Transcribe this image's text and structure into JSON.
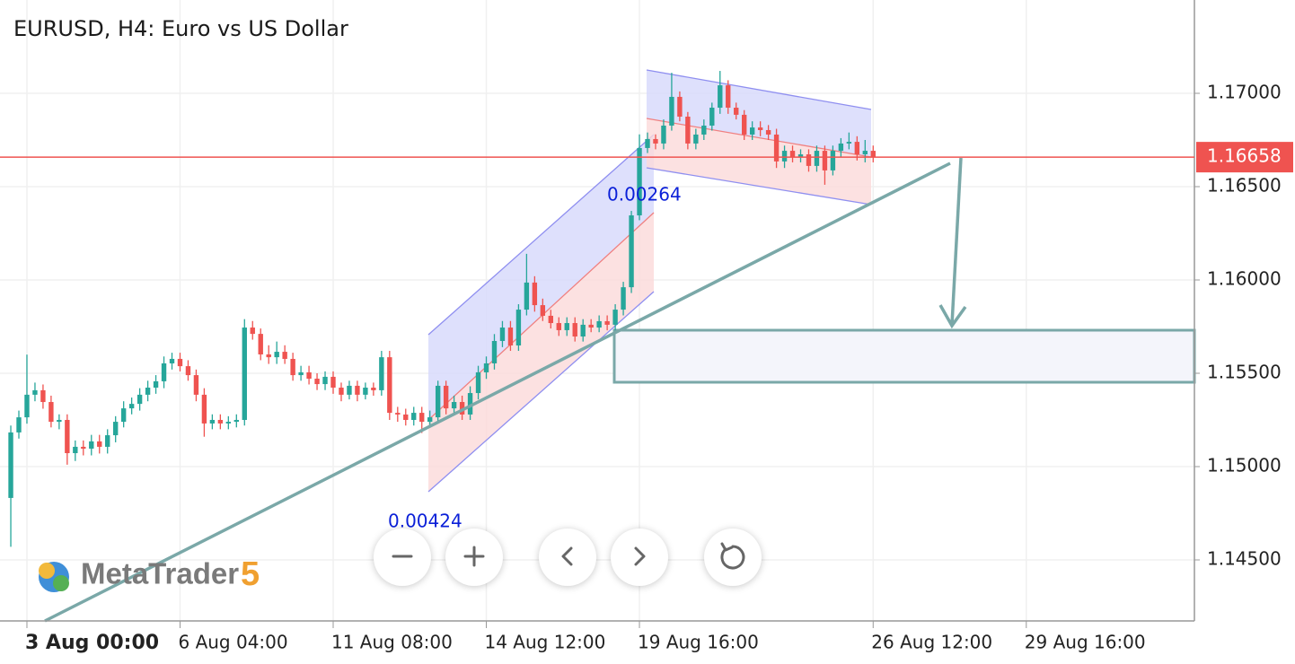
{
  "chart_data": {
    "type": "candlestick",
    "title": "EURUSD, H4: Euro vs US Dollar",
    "up_color": "#26a69a",
    "down_color": "#ef5350",
    "open": [
      1.14832,
      1.15183,
      1.15264,
      1.15385,
      1.15409,
      1.15346,
      1.1524,
      1.1525,
      1.15072,
      1.15106,
      1.15096,
      1.15135,
      1.15106,
      1.15168,
      1.1524,
      1.15312,
      1.15336,
      1.15385,
      1.15423,
      1.15457,
      1.15553,
      1.15577,
      1.15538,
      1.1549,
      1.15385,
      1.15231,
      1.1525,
      1.15231,
      1.1524,
      1.1525,
      1.15745,
      1.15711,
      1.15601,
      1.15586,
      1.15615,
      1.15577,
      1.1549,
      1.15505,
      1.15471,
      1.15442,
      1.15481,
      1.15423,
      1.15385,
      1.15433,
      1.15385,
      1.15423,
      1.15409,
      1.15586,
      1.15288,
      1.15279,
      1.1525,
      1.15288,
      1.1524,
      1.15264,
      1.15433,
      1.15312,
      1.15346,
      1.15279,
      1.15394,
      1.15505,
      1.15553,
      1.15673,
      1.15745,
      1.15649,
      1.15841,
      1.15986,
      1.15865,
      1.15808,
      1.15769,
      1.15731,
      1.15769,
      1.15697,
      1.1576,
      1.15745,
      1.15779,
      1.1576,
      1.15841,
      1.15961,
      1.16346,
      1.16707,
      1.16755,
      1.16731,
      1.16827,
      1.16981,
      1.16875,
      1.16731,
      1.16779,
      1.16827,
      1.16923,
      1.17043,
      1.16923,
      1.16885,
      1.16779,
      1.16817,
      1.16803,
      1.16779,
      1.16635,
      1.16692,
      1.16659,
      1.16673,
      1.16611,
      1.16692,
      1.16587,
      1.16692,
      1.16731,
      1.1674,
      1.16673,
      1.16692
    ],
    "high": [
      1.1522,
      1.153,
      1.156,
      1.1545,
      1.1544,
      1.1538,
      1.1528,
      1.1528,
      1.1514,
      1.1514,
      1.1517,
      1.1517,
      1.152,
      1.1527,
      1.1535,
      1.1537,
      1.1542,
      1.1546,
      1.1549,
      1.1559,
      1.1561,
      1.1561,
      1.1557,
      1.1552,
      1.1542,
      1.1528,
      1.1528,
      1.1527,
      1.1528,
      1.1579,
      1.1578,
      1.1574,
      1.1565,
      1.1567,
      1.1565,
      1.1561,
      1.1554,
      1.1554,
      1.155,
      1.1551,
      1.1551,
      1.1545,
      1.1546,
      1.1546,
      1.1545,
      1.1545,
      1.1562,
      1.1562,
      1.1532,
      1.1531,
      1.1532,
      1.1532,
      1.153,
      1.1546,
      1.1546,
      1.1538,
      1.1538,
      1.1543,
      1.1554,
      1.1559,
      1.1571,
      1.1578,
      1.1578,
      1.1587,
      1.1614,
      1.1602,
      1.159,
      1.1584,
      1.158,
      1.158,
      1.158,
      1.1579,
      1.1579,
      1.1581,
      1.1581,
      1.1587,
      1.1599,
      1.1637,
      1.1678,
      1.1679,
      1.1678,
      1.1686,
      1.1711,
      1.1701,
      1.169,
      1.1681,
      1.1686,
      1.1695,
      1.1712,
      1.1707,
      1.1695,
      1.1691,
      1.1685,
      1.1685,
      1.1683,
      1.1681,
      1.1672,
      1.1672,
      1.167,
      1.167,
      1.1672,
      1.1672,
      1.1672,
      1.1676,
      1.1679,
      1.1677,
      1.1675,
      1.1672
    ],
    "low": [
      1.1457,
      1.1515,
      1.1523,
      1.1535,
      1.1531,
      1.1521,
      1.152,
      1.1501,
      1.1503,
      1.1506,
      1.1506,
      1.1507,
      1.1507,
      1.1513,
      1.1521,
      1.1528,
      1.153,
      1.1535,
      1.1539,
      1.1542,
      1.1552,
      1.1551,
      1.1546,
      1.1535,
      1.1516,
      1.152,
      1.152,
      1.152,
      1.1521,
      1.1522,
      1.1568,
      1.1557,
      1.1555,
      1.1555,
      1.1555,
      1.1546,
      1.1546,
      1.1544,
      1.1541,
      1.1541,
      1.1539,
      1.1535,
      1.1536,
      1.1535,
      1.1536,
      1.1538,
      1.1538,
      1.1525,
      1.1524,
      1.1522,
      1.1522,
      1.1518,
      1.1521,
      1.1523,
      1.1528,
      1.1528,
      1.1525,
      1.1525,
      1.1536,
      1.1547,
      1.1552,
      1.1564,
      1.1562,
      1.1562,
      1.1581,
      1.1583,
      1.1578,
      1.1574,
      1.157,
      1.157,
      1.1567,
      1.1567,
      1.1572,
      1.1572,
      1.1573,
      1.1573,
      1.1581,
      1.1593,
      1.1632,
      1.1668,
      1.167,
      1.167,
      1.168,
      1.1685,
      1.167,
      1.167,
      1.1675,
      1.168,
      1.1689,
      1.1689,
      1.1686,
      1.1675,
      1.1675,
      1.1677,
      1.1675,
      1.166,
      1.166,
      1.1663,
      1.1663,
      1.1658,
      1.1658,
      1.1651,
      1.1656,
      1.1666,
      1.167,
      1.1664,
      1.1663,
      1.1663
    ],
    "close": [
      1.15183,
      1.15264,
      1.15385,
      1.15409,
      1.15346,
      1.1524,
      1.1525,
      1.15072,
      1.15106,
      1.15096,
      1.15135,
      1.15106,
      1.15168,
      1.1524,
      1.15312,
      1.15336,
      1.15385,
      1.15423,
      1.15457,
      1.15553,
      1.15577,
      1.15538,
      1.1549,
      1.15385,
      1.15231,
      1.1525,
      1.15231,
      1.1524,
      1.1525,
      1.15745,
      1.15711,
      1.15601,
      1.15586,
      1.15615,
      1.15577,
      1.1549,
      1.15505,
      1.15471,
      1.15442,
      1.15481,
      1.15423,
      1.15385,
      1.15433,
      1.15385,
      1.15423,
      1.15409,
      1.15586,
      1.15288,
      1.15279,
      1.1525,
      1.15288,
      1.1524,
      1.15264,
      1.15433,
      1.15312,
      1.15346,
      1.15279,
      1.15394,
      1.15505,
      1.15553,
      1.15673,
      1.15745,
      1.15649,
      1.15841,
      1.15986,
      1.15865,
      1.15808,
      1.15769,
      1.15731,
      1.15769,
      1.15697,
      1.1576,
      1.15745,
      1.15779,
      1.1576,
      1.15841,
      1.15961,
      1.16346,
      1.16707,
      1.16755,
      1.16731,
      1.16827,
      1.16981,
      1.16875,
      1.16731,
      1.16779,
      1.16827,
      1.16923,
      1.17043,
      1.16923,
      1.16885,
      1.16779,
      1.16817,
      1.16803,
      1.16779,
      1.16635,
      1.16692,
      1.16659,
      1.16673,
      1.16611,
      1.16692,
      1.16587,
      1.16692,
      1.16731,
      1.1674,
      1.16673,
      1.16692,
      1.16658
    ],
    "last_price": 1.16658,
    "last_price_color": "#ef5350",
    "xlim": [
      -1.34,
      146.86
    ],
    "xticks": [
      {
        "value": 2,
        "label": "3 Aug 00:00"
      },
      {
        "value": 21,
        "label": "6 Aug 04:00"
      },
      {
        "value": 40,
        "label": "11 Aug 08:00"
      },
      {
        "value": 59,
        "label": "14 Aug 12:00"
      },
      {
        "value": 78,
        "label": "19 Aug 16:00"
      },
      {
        "value": 107,
        "label": "26 Aug 12:00"
      },
      {
        "value": 126,
        "label": "29 Aug 16:00"
      }
    ],
    "ylim": [
      1.14173,
      1.175
    ],
    "yticks": [
      {
        "value": 1.145,
        "label": "1.14500"
      },
      {
        "value": 1.15,
        "label": "1.15000"
      },
      {
        "value": 1.155,
        "label": "1.15500"
      },
      {
        "value": 1.16,
        "label": "1.16000"
      },
      {
        "value": 1.165,
        "label": "1.16500"
      },
      {
        "value": 1.17,
        "label": "1.17000"
      }
    ],
    "grid": true,
    "annotations": [
      "0.00264",
      "0.00424"
    ],
    "logo": {
      "name": "MetaTrader",
      "version": "5"
    }
  }
}
